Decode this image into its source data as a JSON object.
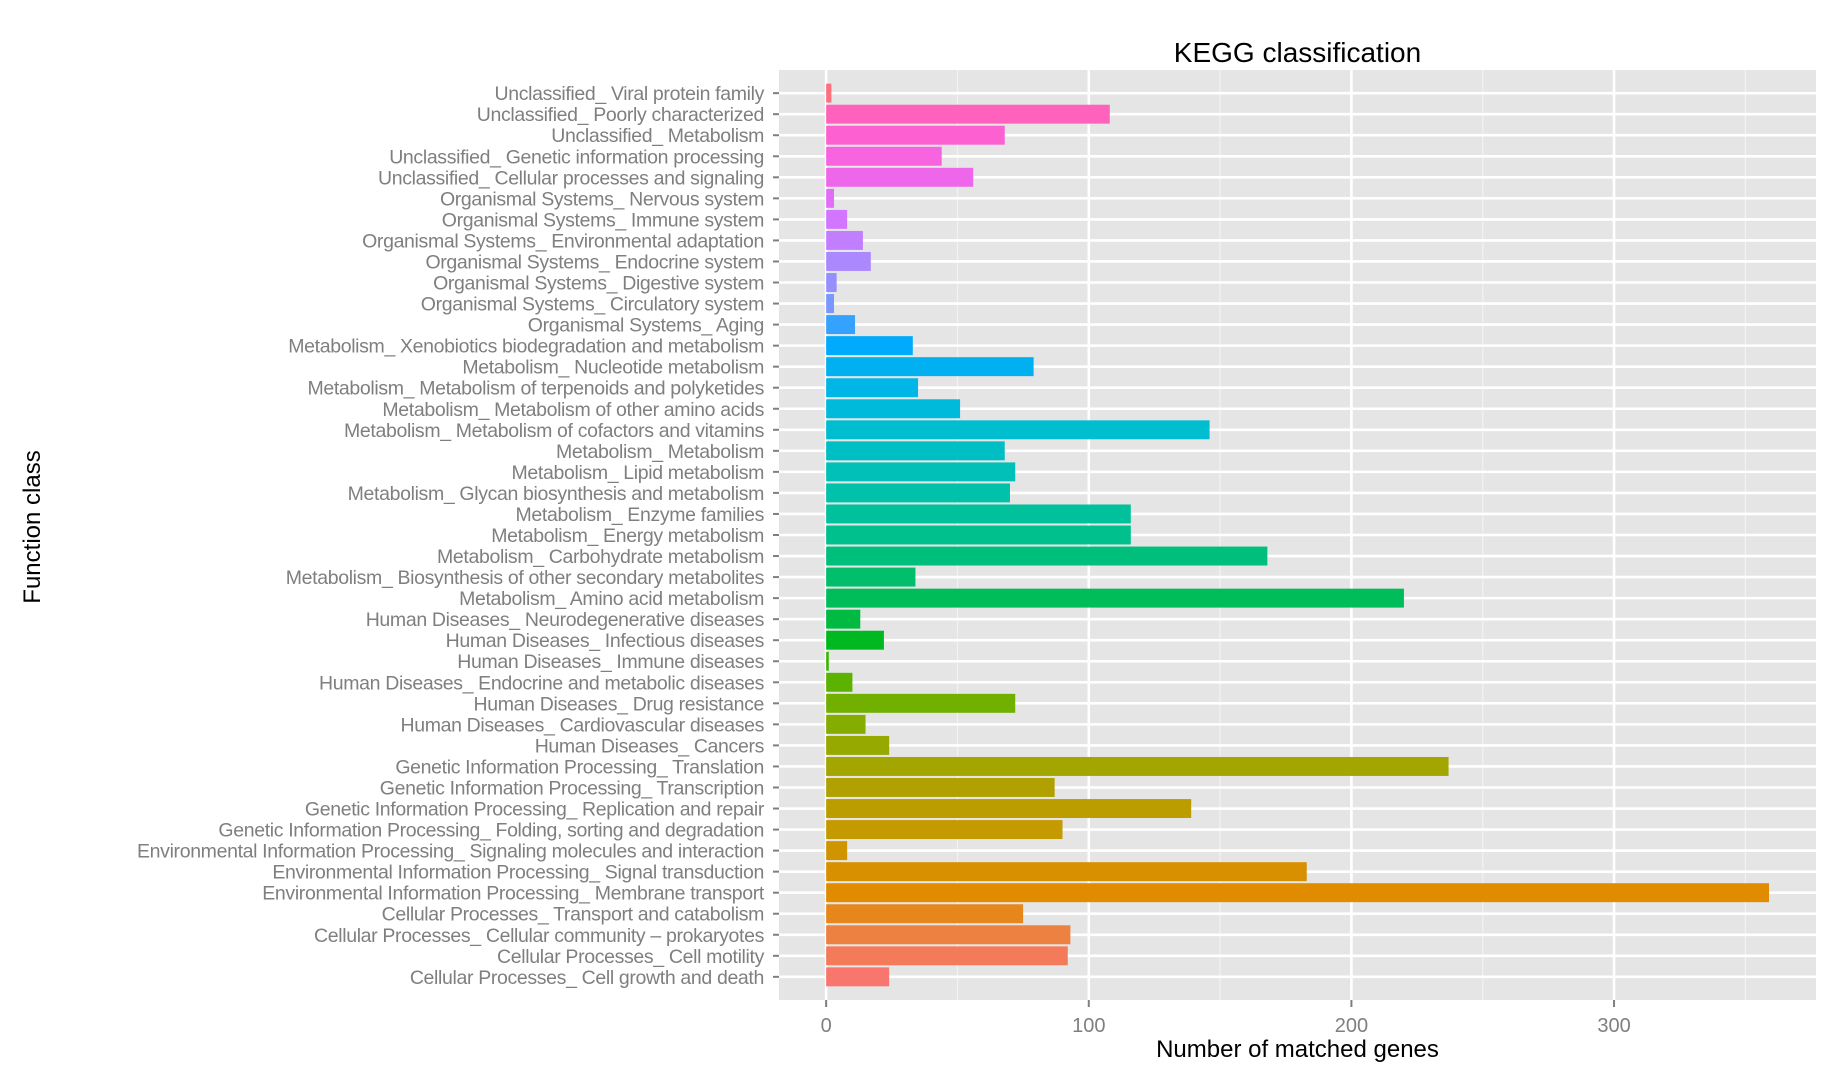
{
  "chart_data": {
    "type": "bar",
    "orientation": "horizontal",
    "title": "KEGG classification",
    "xlabel": "Number of matched genes",
    "ylabel": "Function class",
    "xlim": [
      -17.95,
      376.9
    ],
    "xticks": [
      0,
      100,
      200,
      300
    ],
    "x_minor_gridlines": [
      50,
      150,
      250,
      350
    ],
    "grid": true,
    "legend": "none",
    "panel_background": "#E5E5E5",
    "grid_color": "#FFFFFF",
    "categories": [
      "Cellular Processes_ Cell growth and death",
      "Cellular Processes_ Cell motility",
      "Cellular Processes_ Cellular community – prokaryotes",
      "Cellular Processes_ Transport and catabolism",
      "Environmental Information Processing_ Membrane transport",
      "Environmental Information Processing_ Signal transduction",
      "Environmental Information Processing_ Signaling molecules and interaction",
      "Genetic Information Processing_ Folding, sorting and degradation",
      "Genetic Information Processing_ Replication and repair",
      "Genetic Information Processing_ Transcription",
      "Genetic Information Processing_ Translation",
      "Human Diseases_ Cancers",
      "Human Diseases_ Cardiovascular diseases",
      "Human Diseases_ Drug resistance",
      "Human Diseases_ Endocrine and metabolic diseases",
      "Human Diseases_ Immune diseases",
      "Human Diseases_ Infectious diseases",
      "Human Diseases_ Neurodegenerative diseases",
      "Metabolism_ Amino acid metabolism",
      "Metabolism_ Biosynthesis of other secondary metabolites",
      "Metabolism_ Carbohydrate metabolism",
      "Metabolism_ Energy metabolism",
      "Metabolism_ Enzyme families",
      "Metabolism_ Glycan biosynthesis and metabolism",
      "Metabolism_ Lipid metabolism",
      "Metabolism_ Metabolism",
      "Metabolism_ Metabolism of cofactors and vitamins",
      "Metabolism_ Metabolism of other amino acids",
      "Metabolism_ Metabolism of terpenoids and polyketides",
      "Metabolism_ Nucleotide metabolism",
      "Metabolism_ Xenobiotics biodegradation and metabolism",
      "Organismal Systems_ Aging",
      "Organismal Systems_ Circulatory system",
      "Organismal Systems_ Digestive system",
      "Organismal Systems_ Endocrine system",
      "Organismal Systems_ Environmental adaptation",
      "Organismal Systems_ Immune system",
      "Organismal Systems_ Nervous system",
      "Unclassified_ Cellular processes and signaling",
      "Unclassified_ Genetic information processing",
      "Unclassified_ Metabolism",
      "Unclassified_ Poorly characterized",
      "Unclassified_ Viral protein family"
    ],
    "values": [
      24,
      92,
      93,
      75,
      359,
      183,
      8,
      90,
      139,
      87,
      237,
      24,
      15,
      72,
      10,
      1,
      22,
      13,
      220,
      34,
      168,
      116,
      116,
      70,
      72,
      68,
      146,
      51,
      35,
      79,
      33,
      11,
      3,
      4,
      17,
      14,
      8,
      3,
      56,
      44,
      68,
      108,
      2
    ],
    "colors": [
      "#F8766D",
      "#F37B59",
      "#ED8141",
      "#E7861B",
      "#E08B00",
      "#D89000",
      "#CF9400",
      "#C59900",
      "#BB9D00",
      "#B0A100",
      "#A3A500",
      "#95A900",
      "#85AD00",
      "#72B000",
      "#5BB300",
      "#39B600",
      "#00B81F",
      "#00BA42",
      "#00BC59",
      "#00BE6C",
      "#00BF7D",
      "#00C08D",
      "#00C19C",
      "#00C1AA",
      "#00C0B8",
      "#00BFC4",
      "#00BDD0",
      "#00BADC",
      "#00B6E6",
      "#00B0F0",
      "#00ABFD",
      "#35A2FF",
      "#7997FF",
      "#9590FF",
      "#AC88FF",
      "#C17FFF",
      "#D376FF",
      "#E26EF7",
      "#EE67EB",
      "#F863DF",
      "#FD61D1",
      "#FF62BC",
      "#FC717F"
    ]
  }
}
